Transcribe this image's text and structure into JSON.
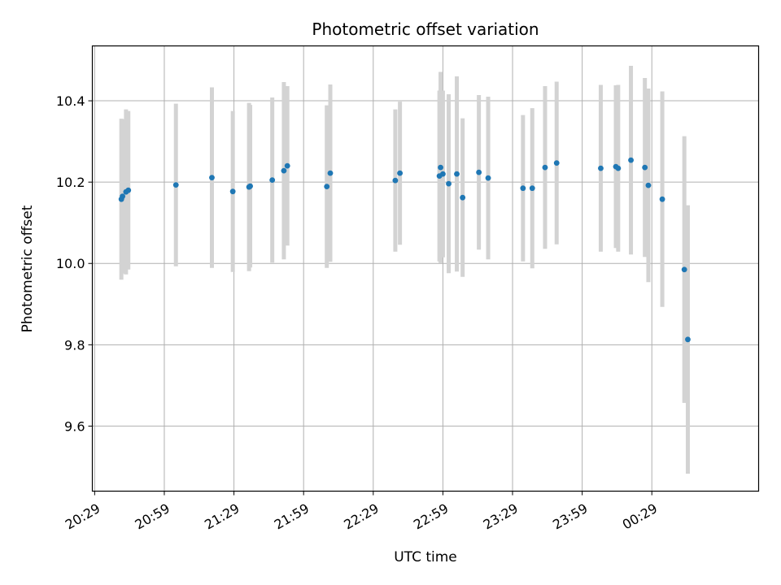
{
  "chart_data": {
    "type": "scatter",
    "title": "Photometric offset variation",
    "xlabel": "UTC time",
    "ylabel": "Photometric offset",
    "xlim": [
      "20:28",
      "01:15"
    ],
    "ylim": [
      9.44,
      10.535
    ],
    "x_ticks": [
      "20:29",
      "20:59",
      "21:29",
      "21:59",
      "22:29",
      "22:59",
      "23:29",
      "23:59",
      "00:29"
    ],
    "y_ticks": [
      9.6,
      9.8,
      10.0,
      10.2,
      10.4
    ],
    "y_tick_labels": [
      "9.6",
      "9.8",
      "10.0",
      "10.2",
      "10.4"
    ],
    "grid": true,
    "point_color": "#1f77b4",
    "errorbar_color": "#d3d3d3",
    "points": [
      {
        "t": "20:40:30",
        "y": 10.158,
        "err": 0.198
      },
      {
        "t": "20:41:00",
        "y": 10.165,
        "err": 0.19
      },
      {
        "t": "20:42:30",
        "y": 10.176,
        "err": 0.203
      },
      {
        "t": "20:43:30",
        "y": 10.18,
        "err": 0.195
      },
      {
        "t": "21:04:00",
        "y": 10.193,
        "err": 0.2
      },
      {
        "t": "21:19:30",
        "y": 10.211,
        "err": 0.222
      },
      {
        "t": "21:28:30",
        "y": 10.177,
        "err": 0.198
      },
      {
        "t": "21:35:30",
        "y": 10.188,
        "err": 0.207
      },
      {
        "t": "21:36:00",
        "y": 10.19,
        "err": 0.2
      },
      {
        "t": "21:45:30",
        "y": 10.205,
        "err": 0.203
      },
      {
        "t": "21:50:30",
        "y": 10.228,
        "err": 0.218
      },
      {
        "t": "21:52:00",
        "y": 10.24,
        "err": 0.196
      },
      {
        "t": "22:09:00",
        "y": 10.189,
        "err": 0.2
      },
      {
        "t": "22:10:30",
        "y": 10.222,
        "err": 0.218
      },
      {
        "t": "22:38:30",
        "y": 10.204,
        "err": 0.175
      },
      {
        "t": "22:40:30",
        "y": 10.222,
        "err": 0.176
      },
      {
        "t": "22:57:30",
        "y": 10.215,
        "err": 0.21
      },
      {
        "t": "22:58:00",
        "y": 10.236,
        "err": 0.235
      },
      {
        "t": "22:59:00",
        "y": 10.22,
        "err": 0.205
      },
      {
        "t": "23:01:30",
        "y": 10.196,
        "err": 0.22
      },
      {
        "t": "23:05:00",
        "y": 10.22,
        "err": 0.24
      },
      {
        "t": "23:07:30",
        "y": 10.162,
        "err": 0.195
      },
      {
        "t": "23:14:30",
        "y": 10.224,
        "err": 0.19
      },
      {
        "t": "23:18:30",
        "y": 10.21,
        "err": 0.2
      },
      {
        "t": "23:33:30",
        "y": 10.185,
        "err": 0.18
      },
      {
        "t": "23:37:30",
        "y": 10.185,
        "err": 0.197
      },
      {
        "t": "23:43:00",
        "y": 10.236,
        "err": 0.2
      },
      {
        "t": "23:48:00",
        "y": 10.247,
        "err": 0.2
      },
      {
        "t": "00:07:00",
        "y": 10.234,
        "err": 0.205
      },
      {
        "t": "00:13:30",
        "y": 10.238,
        "err": 0.2
      },
      {
        "t": "00:14:30",
        "y": 10.234,
        "err": 0.205
      },
      {
        "t": "00:20:00",
        "y": 10.254,
        "err": 0.232
      },
      {
        "t": "00:26:00",
        "y": 10.236,
        "err": 0.22
      },
      {
        "t": "00:27:30",
        "y": 10.192,
        "err": 0.238
      },
      {
        "t": "00:33:30",
        "y": 10.158,
        "err": 0.265
      },
      {
        "t": "00:43:00",
        "y": 9.985,
        "err": 0.328
      },
      {
        "t": "00:44:30",
        "y": 9.813,
        "err": 0.33
      }
    ]
  }
}
